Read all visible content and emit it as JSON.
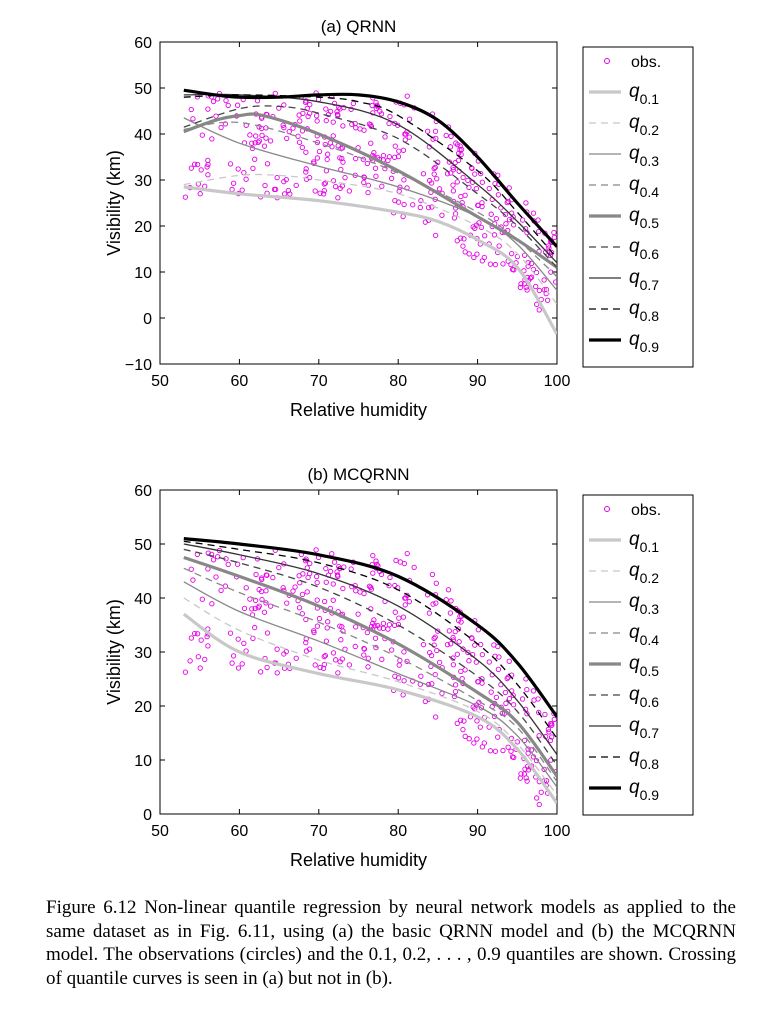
{
  "caption": "Figure 6.12 Non-linear quantile regression by neural network models as applied to the same dataset as in Fig. 6.11, using (a) the basic QRNN model and (b) the MCQRNN model. The observations (circles) and the 0.1, 0.2, . . . , 0.9 quantiles are shown. Crossing of quantile curves is seen in (a) but not in (b).",
  "colors": {
    "obs": "#e600e6",
    "q_light": "#c8c8c8",
    "q_mid": "#888888",
    "q_dark": "#000000"
  },
  "chart_data": [
    {
      "type": "scatter",
      "title": "(a)  QRNN",
      "xlabel": "Relative humidity",
      "ylabel": "Visibility (km)",
      "xlim": [
        50,
        100
      ],
      "ylim": [
        -10,
        60
      ],
      "xticks": [
        50,
        60,
        70,
        80,
        90,
        100
      ],
      "yticks": [
        -10,
        0,
        10,
        20,
        30,
        40,
        50,
        60
      ],
      "legend_position": "outside-right",
      "obs_label": "obs.",
      "series": [
        {
          "name": "q0.1",
          "quantile": "0.1",
          "x": [
            53,
            60,
            70,
            80,
            85,
            90,
            95,
            100
          ],
          "y": [
            28.5,
            27,
            25.5,
            23,
            21,
            17,
            11,
            -3.5
          ]
        },
        {
          "name": "q0.2",
          "quantile": "0.2",
          "x": [
            53,
            60,
            65,
            70,
            80,
            90,
            95,
            100
          ],
          "y": [
            29,
            31,
            31,
            30,
            27,
            20,
            14,
            3
          ]
        },
        {
          "name": "q0.3",
          "quantile": "0.3",
          "x": [
            53,
            60,
            70,
            80,
            90,
            95,
            100
          ],
          "y": [
            43.5,
            38,
            33,
            28.5,
            22,
            16,
            6
          ]
        },
        {
          "name": "q0.4",
          "quantile": "0.4",
          "x": [
            53,
            60,
            70,
            80,
            90,
            95,
            100
          ],
          "y": [
            41,
            42.5,
            38,
            31.5,
            23,
            17,
            9
          ]
        },
        {
          "name": "q0.5",
          "quantile": "0.5",
          "x": [
            53,
            57,
            60,
            63,
            70,
            80,
            90,
            95,
            100
          ],
          "y": [
            40.5,
            43,
            44,
            44,
            40,
            32,
            22,
            17,
            11
          ]
        },
        {
          "name": "q0.6",
          "quantile": "0.6",
          "x": [
            53,
            60,
            65,
            70,
            80,
            90,
            95,
            100
          ],
          "y": [
            41.5,
            45.5,
            46,
            44.5,
            39,
            27,
            20,
            11
          ]
        },
        {
          "name": "q0.7",
          "quantile": "0.7",
          "x": [
            53,
            60,
            70,
            80,
            90,
            95,
            100
          ],
          "y": [
            48.5,
            48.5,
            47,
            42,
            29,
            21,
            12
          ]
        },
        {
          "name": "q0.8",
          "quantile": "0.8",
          "x": [
            53,
            60,
            70,
            75,
            80,
            90,
            95,
            100
          ],
          "y": [
            48,
            48.5,
            48,
            47,
            44,
            32,
            23,
            13
          ]
        },
        {
          "name": "q0.9",
          "quantile": "0.9",
          "x": [
            53,
            57,
            60,
            65,
            70,
            75,
            80,
            85,
            90,
            95,
            100
          ],
          "y": [
            49.5,
            48.5,
            48,
            48,
            48.5,
            48.5,
            47,
            43,
            35,
            25,
            15.5
          ]
        }
      ]
    },
    {
      "type": "scatter",
      "title": "(b)  MCQRNN",
      "xlabel": "Relative humidity",
      "ylabel": "Visibility (km)",
      "xlim": [
        50,
        100
      ],
      "ylim": [
        0,
        60
      ],
      "xticks": [
        50,
        60,
        70,
        80,
        90,
        100
      ],
      "yticks": [
        0,
        10,
        20,
        30,
        40,
        50,
        60
      ],
      "legend_position": "outside-right",
      "obs_label": "obs.",
      "series": [
        {
          "name": "q0.1",
          "quantile": "0.1",
          "x": [
            53,
            60,
            70,
            80,
            90,
            95,
            100
          ],
          "y": [
            37,
            30,
            26,
            23,
            18,
            12,
            2
          ]
        },
        {
          "name": "q0.2",
          "quantile": "0.2",
          "x": [
            53,
            60,
            70,
            80,
            90,
            95,
            100
          ],
          "y": [
            40,
            34,
            28.5,
            24.5,
            19,
            13,
            3.5
          ]
        },
        {
          "name": "q0.3",
          "quantile": "0.3",
          "x": [
            53,
            60,
            70,
            80,
            90,
            95,
            100
          ],
          "y": [
            43,
            37.5,
            32,
            26,
            20,
            14.5,
            5
          ]
        },
        {
          "name": "q0.4",
          "quantile": "0.4",
          "x": [
            53,
            60,
            70,
            80,
            90,
            95,
            100
          ],
          "y": [
            45.5,
            41,
            35.5,
            29,
            21,
            16,
            6
          ]
        },
        {
          "name": "q0.5",
          "quantile": "0.5",
          "x": [
            53,
            60,
            70,
            80,
            90,
            95,
            100
          ],
          "y": [
            47.5,
            44,
            38.5,
            31.5,
            22.5,
            17,
            7
          ]
        },
        {
          "name": "q0.6",
          "quantile": "0.6",
          "x": [
            53,
            60,
            70,
            80,
            90,
            95,
            100
          ],
          "y": [
            49,
            46.5,
            42,
            35,
            25.5,
            19,
            9
          ]
        },
        {
          "name": "q0.7",
          "quantile": "0.7",
          "x": [
            53,
            60,
            70,
            80,
            90,
            95,
            100
          ],
          "y": [
            50,
            48,
            44.5,
            38.5,
            28.5,
            21,
            11
          ]
        },
        {
          "name": "q0.8",
          "quantile": "0.8",
          "x": [
            53,
            60,
            70,
            80,
            90,
            95,
            100
          ],
          "y": [
            50.5,
            49,
            46.5,
            41.5,
            31.5,
            24,
            14
          ]
        },
        {
          "name": "q0.9",
          "quantile": "0.9",
          "x": [
            53,
            60,
            70,
            80,
            90,
            95,
            100
          ],
          "y": [
            51,
            50,
            48,
            44,
            35,
            28,
            18
          ]
        }
      ]
    }
  ]
}
